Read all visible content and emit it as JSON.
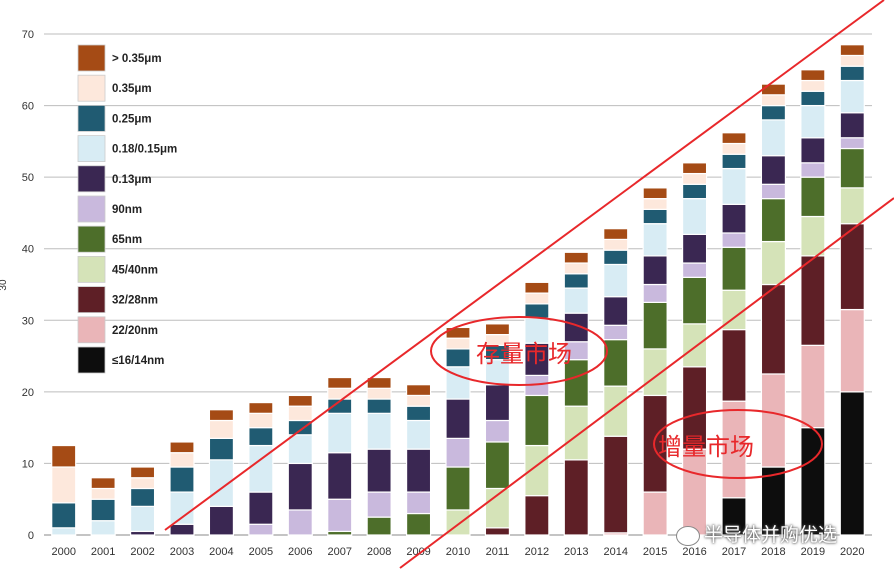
{
  "chart_data": {
    "type": "bar",
    "stacked": true,
    "categories": [
      "2000",
      "2001",
      "2002",
      "2003",
      "2004",
      "2005",
      "2006",
      "2007",
      "2008",
      "2009",
      "2010",
      "2011",
      "2012",
      "2013",
      "2014",
      "2015",
      "2016",
      "2017",
      "2018",
      "2019",
      "2020"
    ],
    "ylim": [
      0,
      70
    ],
    "yticks": [
      0,
      10,
      20,
      30,
      40,
      50,
      60,
      70
    ],
    "ylabel": "",
    "xlabel": "",
    "title": "",
    "grid": true,
    "legend_position": "top-left",
    "series": [
      {
        "name": "≤16/14nm",
        "color": "#0d0d0d",
        "values": [
          0,
          0,
          0,
          0,
          0,
          0,
          0,
          0,
          0,
          0,
          0,
          0,
          0,
          0,
          0,
          0,
          0,
          5.2,
          9.5,
          15,
          20
        ]
      },
      {
        "name": "22/20nm",
        "color": "#eab5b8",
        "values": [
          0,
          0,
          0,
          0,
          0,
          0,
          0,
          0,
          0,
          0,
          0,
          0,
          0,
          0,
          0.3,
          6,
          12,
          13.5,
          13,
          11.5,
          11.5
        ]
      },
      {
        "name": "32/28nm",
        "color": "#5e1f26",
        "values": [
          0,
          0,
          0,
          0,
          0,
          0,
          0,
          0,
          0,
          0,
          0,
          1,
          5.5,
          10.5,
          13.5,
          13.5,
          11.5,
          10,
          12.5,
          12.5,
          12
        ]
      },
      {
        "name": "45/40nm",
        "color": "#d5e3b8",
        "values": [
          0,
          0,
          0,
          0,
          0,
          0,
          0,
          0,
          0,
          0,
          3.5,
          5.5,
          7,
          7.5,
          7,
          6.5,
          6,
          5.5,
          6,
          5.5,
          5
        ]
      },
      {
        "name": "65nm",
        "color": "#4d6e2a",
        "values": [
          0,
          0,
          0,
          0,
          0,
          0,
          0,
          0.5,
          2.5,
          3,
          6,
          6.5,
          7,
          6.5,
          6.5,
          6.5,
          6.5,
          6,
          6,
          5.5,
          5.5
        ]
      },
      {
        "name": "90nm",
        "color": "#c9b9dd",
        "values": [
          0,
          0,
          0,
          0,
          0,
          1.5,
          3.5,
          4.5,
          3.5,
          3,
          4,
          3,
          2.8,
          2.5,
          2,
          2.5,
          2,
          2,
          2,
          2,
          1.5
        ]
      },
      {
        "name": "0.13μm",
        "color": "#3a2752",
        "values": [
          0,
          0,
          0.5,
          1.5,
          4,
          4.5,
          6.5,
          6.5,
          6,
          6,
          5.5,
          5,
          4.5,
          4,
          4,
          4,
          4,
          4,
          4,
          3.5,
          3.5
        ]
      },
      {
        "name": "0.18/0.15μm",
        "color": "#d8ecf4",
        "values": [
          1,
          2,
          3.5,
          4.5,
          6.5,
          6.5,
          4,
          5.5,
          5,
          4,
          4.5,
          3.5,
          3.5,
          3.5,
          4.5,
          4.5,
          5,
          5,
          5,
          4.5,
          4.5
        ]
      },
      {
        "name": "0.25μm",
        "color": "#205b72",
        "values": [
          3.5,
          3,
          2.5,
          3.5,
          3,
          2.5,
          2,
          2,
          2,
          2,
          2.5,
          2,
          2,
          2,
          2,
          2,
          2,
          2,
          2,
          2,
          2
        ]
      },
      {
        "name": "0.35μm",
        "color": "#fde8dc",
        "values": [
          5,
          1.5,
          1.5,
          2,
          2.5,
          2,
          2,
          1.5,
          1.5,
          1.5,
          1.5,
          1.5,
          1.5,
          1.5,
          1.5,
          1.5,
          1.5,
          1.5,
          1.5,
          1.5,
          1.5
        ]
      },
      {
        "name": "> 0.35μm",
        "color": "#a54b15",
        "values": [
          3,
          1.5,
          1.5,
          1.5,
          1.5,
          1.5,
          1.5,
          1.5,
          1.5,
          1.5,
          1.5,
          1.5,
          1.5,
          1.5,
          1.5,
          1.5,
          1.5,
          1.5,
          1.5,
          1.5,
          1.5
        ]
      }
    ],
    "legend_order": [
      "> 0.35μm",
      "0.35μm",
      "0.25μm",
      "0.18/0.15μm",
      "0.13μm",
      "90nm",
      "65nm",
      "45/40nm",
      "32/28nm",
      "22/20nm",
      "≤16/14nm"
    ]
  },
  "annotations": {
    "stock_market": "存量市场",
    "incremental_market": "增量市场",
    "annotation_color": "#e8282b"
  },
  "axis_side_label": "30",
  "watermark": {
    "text": "半导体并购优选",
    "icon": "wechat-icon"
  }
}
